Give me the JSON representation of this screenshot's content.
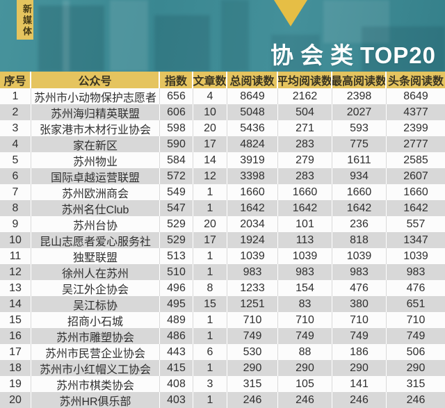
{
  "badge": {
    "label": "新媒体"
  },
  "banner": {
    "title": "协会类",
    "title_suffix": "TOP20"
  },
  "colors": {
    "gold_header": "#E5C45F",
    "gold_triangle": "#E6BE45",
    "teal_banner": "#3E8C96",
    "row_gray": "#D8D8D8",
    "row_white": "#FCFCFC",
    "text_dark": "#2F2F2F",
    "title_white": "#FFFFFF"
  },
  "chart_data": {
    "type": "table",
    "title": "协会类 TOP20",
    "columns": [
      "序号",
      "公众号",
      "指数",
      "文章数",
      "总阅读数",
      "平均阅读数",
      "最高阅读数",
      "头条阅读数"
    ],
    "rows": [
      [
        1,
        "苏州市小动物保护志愿者",
        656,
        4,
        8649,
        2162,
        2398,
        8649
      ],
      [
        2,
        "苏州海归精英联盟",
        606,
        10,
        5048,
        504,
        2027,
        4377
      ],
      [
        3,
        "张家港市木材行业协会",
        598,
        20,
        5436,
        271,
        593,
        2399
      ],
      [
        4,
        "家在新区",
        590,
        17,
        4824,
        283,
        775,
        2777
      ],
      [
        5,
        "苏州物业",
        584,
        14,
        3919,
        279,
        1611,
        2585
      ],
      [
        6,
        "国际卓越运营联盟",
        572,
        12,
        3398,
        283,
        934,
        2607
      ],
      [
        7,
        "苏州欧洲商会",
        549,
        1,
        1660,
        1660,
        1660,
        1660
      ],
      [
        8,
        "苏州名仕Club",
        547,
        1,
        1642,
        1642,
        1642,
        1642
      ],
      [
        9,
        "苏州台协",
        529,
        20,
        2034,
        101,
        236,
        557
      ],
      [
        10,
        "昆山志愿者爱心服务社",
        529,
        17,
        1924,
        113,
        818,
        1347
      ],
      [
        11,
        "独墅联盟",
        513,
        1,
        1039,
        1039,
        1039,
        1039
      ],
      [
        12,
        "徐州人在苏州",
        510,
        1,
        983,
        983,
        983,
        983
      ],
      [
        13,
        "吴江外企协会",
        496,
        8,
        1233,
        154,
        476,
        476
      ],
      [
        14,
        "吴江标协",
        495,
        15,
        1251,
        83,
        380,
        651
      ],
      [
        15,
        "招商小石城",
        489,
        1,
        710,
        710,
        710,
        710
      ],
      [
        16,
        "苏州市雕塑协会",
        486,
        1,
        749,
        749,
        749,
        749
      ],
      [
        17,
        "苏州市民营企业协会",
        443,
        6,
        530,
        88,
        186,
        506
      ],
      [
        18,
        "苏州市小红帽义工协会",
        415,
        1,
        290,
        290,
        290,
        290
      ],
      [
        19,
        "苏州市棋类协会",
        408,
        3,
        315,
        105,
        141,
        315
      ],
      [
        20,
        "苏州HR俱乐部",
        403,
        1,
        246,
        246,
        246,
        246
      ]
    ]
  }
}
